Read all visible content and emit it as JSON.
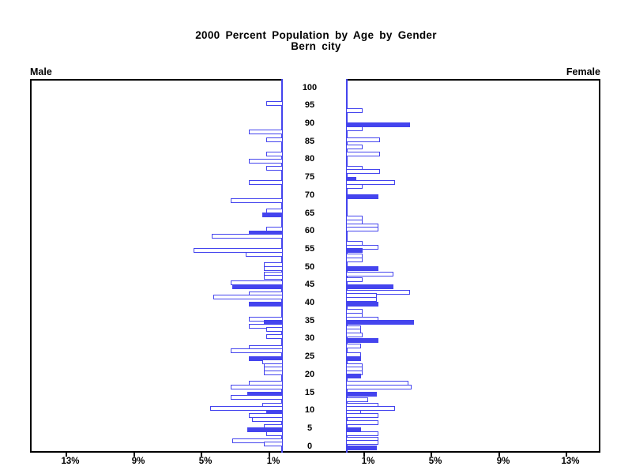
{
  "title": {
    "line1": "2000 Percent Population by Age by Gender",
    "line2": "Bern city"
  },
  "left_header": "Male",
  "right_header": "Female",
  "age_axis": {
    "labels": [
      100,
      95,
      90,
      85,
      80,
      75,
      70,
      65,
      60,
      55,
      50,
      45,
      40,
      35,
      30,
      25,
      20,
      15,
      10,
      5,
      0
    ]
  },
  "x_axis": {
    "left_tick_labels": [
      "13%",
      "9%",
      "5%",
      "1%"
    ],
    "right_tick_labels": [
      "1%",
      "5%",
      "9%",
      "13%"
    ],
    "pct_values_left": [
      13,
      9,
      5,
      1
    ],
    "pct_values_right": [
      1,
      5,
      9,
      13
    ]
  },
  "colors": {
    "bar": "#4444ee",
    "axis": "#000000",
    "background": "#ffffff"
  },
  "chart_data": {
    "type": "bar",
    "orientation": "population-pyramid",
    "title": "2000 Percent Population by Age by Gender",
    "subtitle": "Bern city",
    "unit": "percent of population",
    "x_tick_percents": [
      1,
      5,
      9,
      13
    ],
    "age_tick_step": 5,
    "age_range": [
      0,
      100
    ],
    "note": "horizontal bars by single year of age; solid bars are filled blue, others are white with blue outline",
    "male_bars": [
      {
        "age": 96,
        "pct": 1.0,
        "filled": false
      },
      {
        "age": 88,
        "pct": 2.0,
        "filled": false
      },
      {
        "age": 86,
        "pct": 1.0,
        "filled": false
      },
      {
        "age": 82,
        "pct": 1.0,
        "filled": false
      },
      {
        "age": 80,
        "pct": 2.0,
        "filled": false
      },
      {
        "age": 78,
        "pct": 1.0,
        "filled": false
      },
      {
        "age": 74,
        "pct": 2.0,
        "filled": false
      },
      {
        "age": 69,
        "pct": 3.1,
        "filled": false
      },
      {
        "age": 66,
        "pct": 1.0,
        "filled": false
      },
      {
        "age": 65,
        "pct": 1.2,
        "filled": true
      },
      {
        "age": 61,
        "pct": 1.0,
        "filled": false
      },
      {
        "age": 60,
        "pct": 2.0,
        "filled": true
      },
      {
        "age": 59,
        "pct": 4.2,
        "filled": false
      },
      {
        "age": 55,
        "pct": 5.3,
        "filled": false
      },
      {
        "age": 54,
        "pct": 2.2,
        "filled": false
      },
      {
        "age": 51,
        "pct": 1.1,
        "filled": false
      },
      {
        "age": 50,
        "pct": 1.1,
        "filled": false
      },
      {
        "age": 48.5,
        "pct": 1.1,
        "filled": false
      },
      {
        "age": 47.5,
        "pct": 1.1,
        "filled": false
      },
      {
        "age": 46,
        "pct": 3.1,
        "filled": false
      },
      {
        "age": 45,
        "pct": 3.0,
        "filled": true
      },
      {
        "age": 43,
        "pct": 2.0,
        "filled": false
      },
      {
        "age": 42,
        "pct": 4.1,
        "filled": false
      },
      {
        "age": 40,
        "pct": 2.0,
        "filled": true
      },
      {
        "age": 36,
        "pct": 2.0,
        "filled": false
      },
      {
        "age": 35,
        "pct": 1.1,
        "filled": true
      },
      {
        "age": 34,
        "pct": 2.0,
        "filled": false
      },
      {
        "age": 33,
        "pct": 1.0,
        "filled": false
      },
      {
        "age": 31,
        "pct": 1.0,
        "filled": false
      },
      {
        "age": 28,
        "pct": 2.0,
        "filled": false
      },
      {
        "age": 27,
        "pct": 3.1,
        "filled": false
      },
      {
        "age": 25,
        "pct": 2.0,
        "filled": true
      },
      {
        "age": 24,
        "pct": 1.2,
        "filled": false
      },
      {
        "age": 23,
        "pct": 1.1,
        "filled": false
      },
      {
        "age": 22,
        "pct": 1.1,
        "filled": false
      },
      {
        "age": 21,
        "pct": 1.1,
        "filled": false
      },
      {
        "age": 18,
        "pct": 2.0,
        "filled": false
      },
      {
        "age": 17,
        "pct": 3.1,
        "filled": false
      },
      {
        "age": 15,
        "pct": 2.1,
        "filled": true
      },
      {
        "age": 14,
        "pct": 3.1,
        "filled": false
      },
      {
        "age": 12,
        "pct": 1.2,
        "filled": false
      },
      {
        "age": 11,
        "pct": 4.3,
        "filled": false
      },
      {
        "age": 10,
        "pct": 1.0,
        "filled": true
      },
      {
        "age": 9,
        "pct": 2.0,
        "filled": false
      },
      {
        "age": 8,
        "pct": 1.8,
        "filled": false
      },
      {
        "age": 6,
        "pct": 1.1,
        "filled": false
      },
      {
        "age": 5,
        "pct": 2.1,
        "filled": true
      },
      {
        "age": 4,
        "pct": 1.0,
        "filled": false
      },
      {
        "age": 2,
        "pct": 3.0,
        "filled": false
      },
      {
        "age": 1,
        "pct": 1.1,
        "filled": false
      }
    ],
    "female_bars": [
      {
        "age": 94,
        "pct": 1.0,
        "filled": false
      },
      {
        "age": 90,
        "pct": 3.8,
        "filled": true
      },
      {
        "age": 89,
        "pct": 1.0,
        "filled": false
      },
      {
        "age": 86,
        "pct": 2.0,
        "filled": false
      },
      {
        "age": 84,
        "pct": 1.0,
        "filled": false
      },
      {
        "age": 82,
        "pct": 2.0,
        "filled": false
      },
      {
        "age": 78,
        "pct": 1.0,
        "filled": false
      },
      {
        "age": 77,
        "pct": 2.0,
        "filled": false
      },
      {
        "age": 75,
        "pct": 0.6,
        "filled": true
      },
      {
        "age": 74,
        "pct": 2.9,
        "filled": false
      },
      {
        "age": 73,
        "pct": 1.0,
        "filled": false
      },
      {
        "age": 70,
        "pct": 1.9,
        "filled": true
      },
      {
        "age": 64,
        "pct": 1.0,
        "filled": false
      },
      {
        "age": 63,
        "pct": 1.0,
        "filled": false
      },
      {
        "age": 62,
        "pct": 1.9,
        "filled": false
      },
      {
        "age": 61,
        "pct": 1.9,
        "filled": false
      },
      {
        "age": 57,
        "pct": 1.0,
        "filled": false
      },
      {
        "age": 56,
        "pct": 1.9,
        "filled": false
      },
      {
        "age": 55,
        "pct": 1.0,
        "filled": true
      },
      {
        "age": 53.5,
        "pct": 1.0,
        "filled": false
      },
      {
        "age": 52.5,
        "pct": 1.0,
        "filled": false
      },
      {
        "age": 50,
        "pct": 1.9,
        "filled": true
      },
      {
        "age": 48.5,
        "pct": 2.8,
        "filled": false
      },
      {
        "age": 47,
        "pct": 1.0,
        "filled": false
      },
      {
        "age": 45,
        "pct": 2.8,
        "filled": true
      },
      {
        "age": 43.5,
        "pct": 3.8,
        "filled": false
      },
      {
        "age": 42.5,
        "pct": 1.8,
        "filled": false
      },
      {
        "age": 41.5,
        "pct": 1.8,
        "filled": false
      },
      {
        "age": 40,
        "pct": 1.9,
        "filled": true
      },
      {
        "age": 38,
        "pct": 1.0,
        "filled": false
      },
      {
        "age": 37,
        "pct": 1.0,
        "filled": false
      },
      {
        "age": 36,
        "pct": 1.9,
        "filled": false
      },
      {
        "age": 35,
        "pct": 4.0,
        "filled": true
      },
      {
        "age": 33.5,
        "pct": 0.9,
        "filled": false
      },
      {
        "age": 32.5,
        "pct": 0.9,
        "filled": false
      },
      {
        "age": 31.5,
        "pct": 1.0,
        "filled": false
      },
      {
        "age": 30,
        "pct": 1.9,
        "filled": true
      },
      {
        "age": 28.5,
        "pct": 0.9,
        "filled": false
      },
      {
        "age": 26,
        "pct": 0.9,
        "filled": false
      },
      {
        "age": 25,
        "pct": 0.9,
        "filled": true
      },
      {
        "age": 23,
        "pct": 1.0,
        "filled": false
      },
      {
        "age": 22,
        "pct": 1.0,
        "filled": false
      },
      {
        "age": 21,
        "pct": 1.0,
        "filled": false
      },
      {
        "age": 20,
        "pct": 0.9,
        "filled": true
      },
      {
        "age": 18,
        "pct": 3.7,
        "filled": false
      },
      {
        "age": 17,
        "pct": 3.9,
        "filled": false
      },
      {
        "age": 15,
        "pct": 1.8,
        "filled": true
      },
      {
        "age": 13.5,
        "pct": 1.3,
        "filled": false
      },
      {
        "age": 12,
        "pct": 1.9,
        "filled": false
      },
      {
        "age": 11,
        "pct": 2.9,
        "filled": false
      },
      {
        "age": 10,
        "pct": 0.9,
        "filled": false
      },
      {
        "age": 9,
        "pct": 1.9,
        "filled": false
      },
      {
        "age": 7,
        "pct": 1.9,
        "filled": false
      },
      {
        "age": 5,
        "pct": 0.9,
        "filled": true
      },
      {
        "age": 4,
        "pct": 1.9,
        "filled": false
      },
      {
        "age": 2.5,
        "pct": 1.9,
        "filled": false
      },
      {
        "age": 1.5,
        "pct": 1.9,
        "filled": false
      },
      {
        "age": 0,
        "pct": 1.8,
        "filled": true
      }
    ]
  }
}
